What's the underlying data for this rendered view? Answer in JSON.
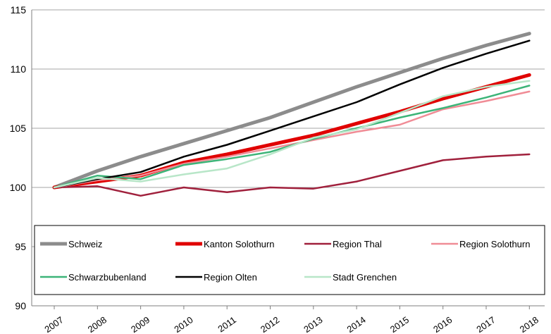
{
  "chart_data": {
    "type": "line",
    "title": "",
    "xlabel": "",
    "ylabel": "",
    "x": [
      "2007",
      "2008",
      "2009",
      "2010",
      "2011",
      "2012",
      "2013",
      "2014",
      "2015",
      "2016",
      "2017",
      "2018"
    ],
    "ylim": [
      90,
      115
    ],
    "yticks": [
      "90",
      "95",
      "100",
      "105",
      "110",
      "115"
    ],
    "grid": "horizontal",
    "legend_position": "bottom-inside",
    "series": [
      {
        "name": "Schweiz",
        "color": "#8c8c8c",
        "width": 5,
        "values": [
          100.0,
          101.4,
          102.6,
          103.7,
          104.8,
          105.9,
          107.2,
          108.5,
          109.7,
          110.9,
          112.0,
          113.0
        ]
      },
      {
        "name": "Kanton Solothurn",
        "color": "#e00000",
        "width": 5,
        "values": [
          100.0,
          100.5,
          101.0,
          102.1,
          102.8,
          103.6,
          104.4,
          105.4,
          106.4,
          107.5,
          108.5,
          109.5
        ]
      },
      {
        "name": "Region Thal",
        "color": "#a0203c",
        "width": 2.5,
        "values": [
          100.0,
          100.1,
          99.3,
          100.0,
          99.6,
          100.0,
          99.9,
          100.5,
          101.4,
          102.3,
          102.6,
          102.8
        ]
      },
      {
        "name": "Region Solothurn",
        "color": "#f08c96",
        "width": 2.5,
        "values": [
          100.0,
          100.6,
          101.0,
          102.0,
          102.6,
          103.3,
          104.0,
          104.7,
          105.3,
          106.6,
          107.3,
          108.1
        ]
      },
      {
        "name": "Schwarzbubenland",
        "color": "#3cb478",
        "width": 2.5,
        "values": [
          100.0,
          101.0,
          100.7,
          101.9,
          102.4,
          103.0,
          104.1,
          105.0,
          105.9,
          106.7,
          107.6,
          108.6
        ]
      },
      {
        "name": "Region Olten",
        "color": "#000000",
        "width": 2.5,
        "values": [
          100.0,
          100.7,
          101.3,
          102.6,
          103.6,
          104.8,
          106.0,
          107.2,
          108.7,
          110.1,
          111.3,
          112.4
        ]
      },
      {
        "name": "Stadt Grenchen",
        "color": "#b8e6c8",
        "width": 2.5,
        "values": [
          100.0,
          100.8,
          100.5,
          101.1,
          101.6,
          102.8,
          104.2,
          104.9,
          106.3,
          107.7,
          108.5,
          109.0
        ]
      }
    ]
  }
}
